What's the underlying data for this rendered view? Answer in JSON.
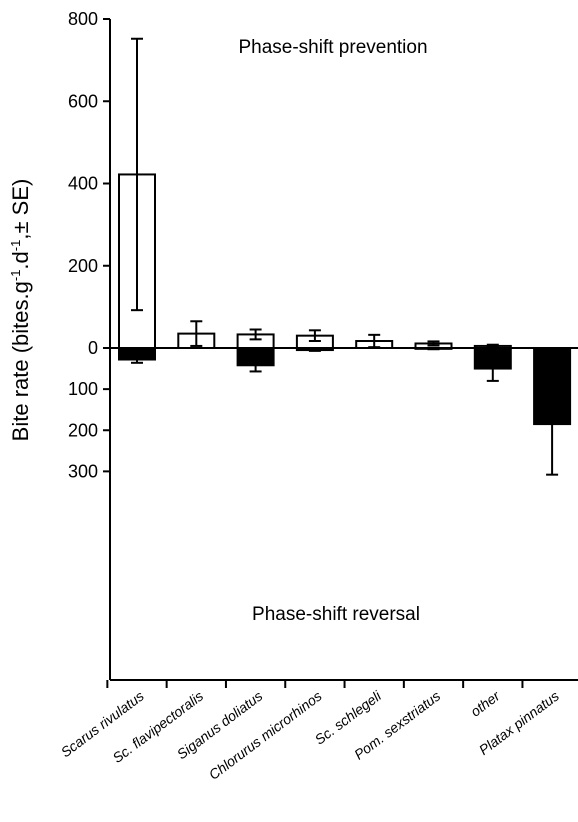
{
  "chart_data": {
    "type": "bar",
    "ylabel_parts": [
      "Bite rate (bites.g",
      "-1",
      ".d",
      "-1",
      ",± SE)"
    ],
    "categories": [
      "Scarus rivulatus",
      "Sc. flavipectoralis",
      "Siganus doliatus",
      "Chlorurus microrhinos",
      "Sc. schlegeli",
      "Pom. sexstriatus",
      "other",
      "Platax  pinnatus"
    ],
    "series": [
      {
        "name": "Phase-shift prevention",
        "fill": "#ffffff",
        "direction": "up",
        "values": [
          422,
          35,
          33,
          30,
          17,
          11,
          5,
          0
        ],
        "errors": [
          330,
          30,
          12,
          13,
          15,
          5,
          3,
          0
        ]
      },
      {
        "name": "Phase-shift reversal",
        "fill": "#000000",
        "direction": "down",
        "values": [
          28,
          0,
          42,
          5,
          0,
          2,
          50,
          185
        ],
        "errors": [
          8,
          0,
          15,
          2,
          0,
          1,
          30,
          123
        ]
      }
    ],
    "upper_ticks": [
      0,
      200,
      400,
      600,
      800
    ],
    "lower_ticks": [
      100,
      200,
      300
    ],
    "upper_range": [
      0,
      800
    ],
    "lower_range": [
      0,
      350
    ],
    "annotations": {
      "top": "Phase-shift prevention",
      "bottom": "Phase-shift reversal"
    }
  }
}
